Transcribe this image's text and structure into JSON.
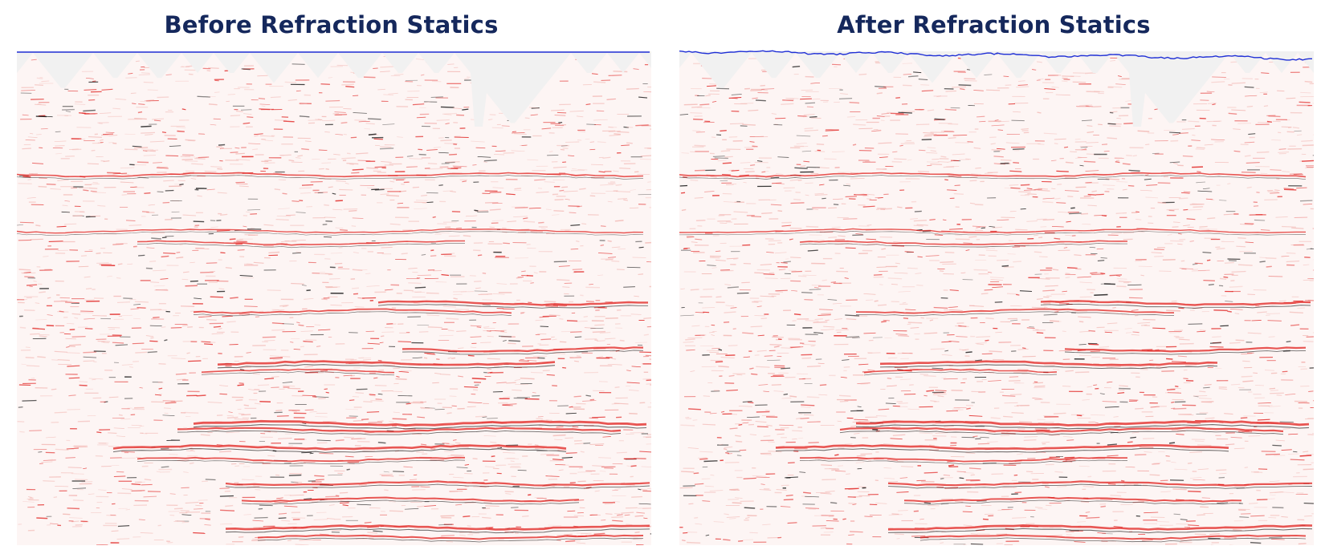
{
  "colors": {
    "title": "#15285c",
    "datum_line": "#1f2fd6",
    "trace_positive": "#e0201e",
    "trace_strong": "#111111",
    "trace_pale": "#f2b7b3",
    "gap_fill": "#f1f1f1"
  },
  "panels": [
    {
      "title": "Before Refraction Statics"
    },
    {
      "title": "After Refraction Statics"
    }
  ]
}
